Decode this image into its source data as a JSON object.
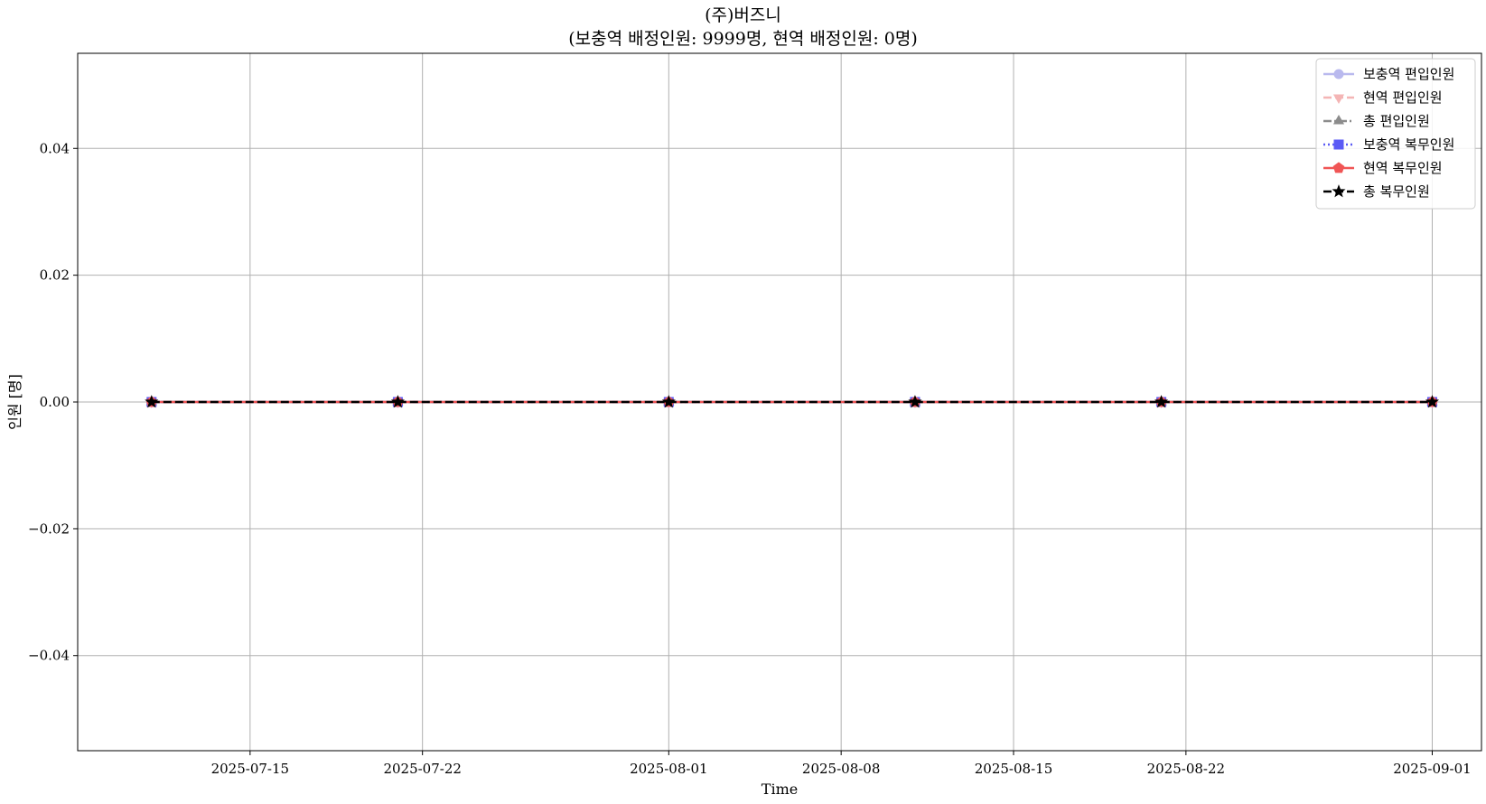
{
  "chart_data": {
    "type": "line",
    "title": "(주)버즈니",
    "subtitle": "(보충역 배정인원: 9999명, 현역 배정인원: 0명)",
    "xlabel": "Time",
    "ylabel": "인원 [명]",
    "x": [
      "2025-07-11",
      "2025-07-21",
      "2025-08-01",
      "2025-08-11",
      "2025-08-21",
      "2025-09-01"
    ],
    "xlim": [
      "2025-07-08",
      "2025-09-03"
    ],
    "ylim": [
      -0.055,
      0.055
    ],
    "xticks": [
      "2025-07-15",
      "2025-07-22",
      "2025-08-01",
      "2025-08-08",
      "2025-08-15",
      "2025-08-22",
      "2025-09-01"
    ],
    "yticks": [
      -0.04,
      -0.02,
      0.0,
      0.02,
      0.04
    ],
    "ytick_labels": [
      "−0.04",
      "−0.02",
      "0.00",
      "0.02",
      "0.04"
    ],
    "grid": true,
    "legend_position": "top-right",
    "series": [
      {
        "name": "보충역 편입인원",
        "values": [
          0,
          0,
          0,
          0,
          0,
          0
        ],
        "color": "#b9b9ee",
        "marker": "circle",
        "linestyle": "solid"
      },
      {
        "name": "현역 편입인원",
        "values": [
          0,
          0,
          0,
          0,
          0,
          0
        ],
        "color": "#f4b5b5",
        "marker": "triangle-down",
        "linestyle": "dashed"
      },
      {
        "name": "총 편입인원",
        "values": [
          0,
          0,
          0,
          0,
          0,
          0
        ],
        "color": "#8c8c8c",
        "marker": "triangle-up",
        "linestyle": "dashdot"
      },
      {
        "name": "보충역 복무인원",
        "values": [
          0,
          0,
          0,
          0,
          0,
          0
        ],
        "color": "#5a5af5",
        "marker": "square",
        "linestyle": "dotted"
      },
      {
        "name": "현역 복무인원",
        "values": [
          0,
          0,
          0,
          0,
          0,
          0
        ],
        "color": "#f05555",
        "marker": "pentagon",
        "linestyle": "solid"
      },
      {
        "name": "총 복무인원",
        "values": [
          0,
          0,
          0,
          0,
          0,
          0
        ],
        "color": "#000000",
        "marker": "star",
        "linestyle": "dashed"
      }
    ]
  }
}
